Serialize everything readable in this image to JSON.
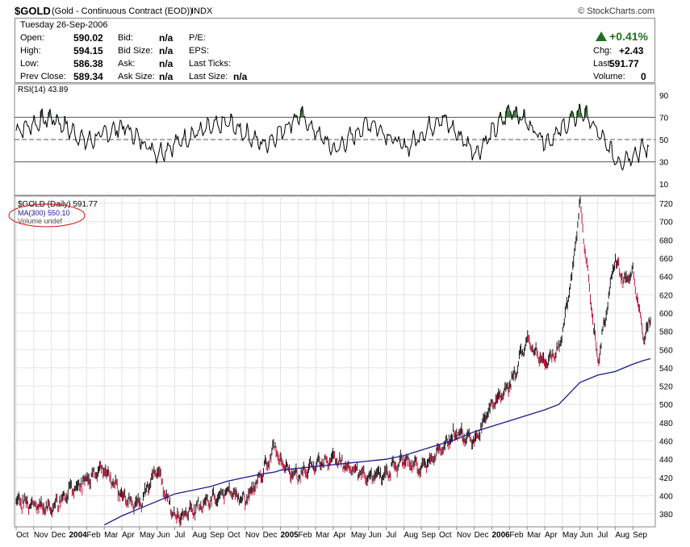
{
  "header": {
    "symbol": "$GOLD",
    "description": "(Gold - Continuous Contract (EOD))",
    "exchange": "INDX",
    "brand": "© StockCharts.com"
  },
  "quote": {
    "date": "Tuesday  26-Sep-2006",
    "open_label": "Open:",
    "open": "590.02",
    "high_label": "High:",
    "high": "594.15",
    "low_label": "Low:",
    "low": "586.38",
    "prev_label": "Prev Close:",
    "prev": "589.34",
    "bid_label": "Bid:",
    "bid": "n/a",
    "bidsize_label": "Bid Size:",
    "bidsize": "n/a",
    "ask_label": "Ask:",
    "ask": "n/a",
    "asksize_label": "Ask Size:",
    "asksize": "n/a",
    "pe_label": "P/E:",
    "eps_label": "EPS:",
    "lastticks_label": "Last Ticks:",
    "lastsize_label": "Last Size:",
    "lastsize": "n/a",
    "pct_change": "+0.41%",
    "chg_label": "Chg:",
    "chg": "+2.43",
    "last_label": "Last:",
    "last": "591.77",
    "volume_label": "Volume:",
    "volume": "0"
  },
  "chart_data": [
    {
      "type": "line",
      "title": "RSI(14) 43.89",
      "yticks": [
        10,
        30,
        50,
        70,
        90
      ],
      "ylim": [
        0,
        100
      ],
      "reference_lines": [
        30,
        50,
        70
      ],
      "last_value": 43.89,
      "x_anchors": [
        0,
        8,
        16,
        24,
        32,
        40,
        48,
        56,
        64,
        72,
        80,
        88,
        96,
        104,
        112,
        120,
        128,
        136,
        143
      ],
      "y_anchors": [
        58,
        70,
        48,
        62,
        38,
        55,
        65,
        45,
        72,
        40,
        66,
        42,
        70,
        38,
        78,
        48,
        76,
        30,
        44
      ],
      "color": "#000000",
      "overbought_fill": "#3a7a3a"
    },
    {
      "type": "line",
      "title": "$GOLD (Daily) 591.77",
      "legend": [
        {
          "name": "MA(300) 550.10",
          "color": "#1a1a8c"
        },
        {
          "name": "Volume undef",
          "color": "#888888"
        }
      ],
      "yticks": [
        380,
        400,
        420,
        440,
        460,
        480,
        500,
        520,
        540,
        560,
        580,
        600,
        620,
        640,
        660,
        680,
        700,
        720
      ],
      "ylim": [
        366,
        728
      ],
      "x_month_labels": [
        "Oct",
        "Nov",
        "Dec",
        "2004",
        "Feb",
        "Mar",
        "Apr",
        "May",
        "Jun",
        "Jul",
        "Aug",
        "Sep",
        "Oct",
        "Nov",
        "Dec",
        "2005",
        "Feb",
        "Mar",
        "Apr",
        "May",
        "Jun",
        "Jul",
        "Aug",
        "Sep",
        "Oct",
        "Nov",
        "Dec",
        "2006",
        "Feb",
        "Mar",
        "Apr",
        "May",
        "Jun",
        "Jul",
        "Aug",
        "Sep"
      ],
      "x_anchors": [
        0,
        2,
        3,
        5,
        6,
        7,
        8,
        9,
        11,
        12,
        13,
        14,
        14.7,
        15,
        16,
        17,
        18,
        19,
        20,
        21,
        22,
        23,
        24,
        25,
        26,
        27,
        28,
        29,
        30,
        30.8,
        31.2,
        31.6,
        32,
        33,
        34,
        34.5,
        35,
        35.6,
        36
      ],
      "price_anchors": [
        395,
        385,
        405,
        430,
        400,
        390,
        430,
        375,
        395,
        405,
        395,
        425,
        455,
        435,
        420,
        435,
        440,
        430,
        420,
        425,
        440,
        430,
        448,
        470,
        460,
        500,
        520,
        570,
        545,
        560,
        600,
        650,
        720,
        545,
        660,
        635,
        645,
        575,
        590
      ],
      "ma_anchors": [
        null,
        null,
        null,
        368,
        378,
        386,
        394,
        402,
        410,
        416,
        420,
        424,
        426,
        428,
        430,
        432,
        434,
        436,
        438,
        440,
        444,
        450,
        456,
        462,
        470,
        476,
        482,
        488,
        494,
        500,
        508,
        516,
        524,
        532,
        536,
        540,
        544,
        548,
        550.1
      ],
      "price_color": "#1a1a1a",
      "down_color": "#c0143c",
      "last_price": 591.77,
      "ma_last": 550.1
    }
  ]
}
